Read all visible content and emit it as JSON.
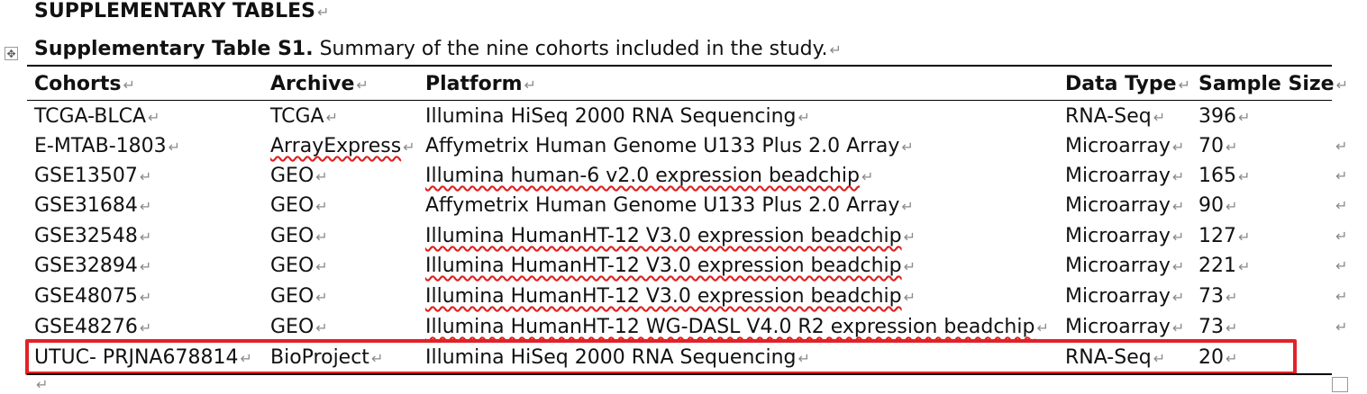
{
  "heading": "SUPPLEMENTARY TABLES",
  "caption": {
    "label": "Supplementary Table S1.",
    "text": " Summary of the nine cohorts included in the study."
  },
  "marks": {
    "return": "↵",
    "handle": "✥",
    "arrow": "⇠"
  },
  "columns": [
    "Cohorts",
    "Archive",
    "Platform",
    "Data Type",
    "Sample Size"
  ],
  "rows": [
    {
      "cohort": "TCGA-BLCA",
      "archive": "TCGA",
      "platform": "Illumina HiSeq 2000 RNA Sequencing",
      "type": "RNA-Seq",
      "size": "396"
    },
    {
      "cohort": "E-MTAB-1803",
      "archive": "ArrayExpress",
      "platform": "Affymetrix Human Genome U133 Plus 2.0 Array",
      "type": "Microarray",
      "size": "70"
    },
    {
      "cohort": "GSE13507",
      "archive": "GEO",
      "platform": "Illumina human-6 v2.0 expression beadchip",
      "type": "Microarray",
      "size": "165"
    },
    {
      "cohort": "GSE31684",
      "archive": "GEO",
      "platform": "Affymetrix Human Genome U133 Plus 2.0 Array",
      "type": "Microarray",
      "size": "90"
    },
    {
      "cohort": "GSE32548",
      "archive": "GEO",
      "platform": "Illumina HumanHT-12 V3.0 expression beadchip",
      "type": "Microarray",
      "size": "127"
    },
    {
      "cohort": "GSE32894",
      "archive": "GEO",
      "platform": "Illumina HumanHT-12 V3.0 expression beadchip",
      "type": "Microarray",
      "size": "221"
    },
    {
      "cohort": "GSE48075",
      "archive": "GEO",
      "platform": "Illumina HumanHT-12 V3.0 expression beadchip",
      "type": "Microarray",
      "size": "73"
    },
    {
      "cohort": "GSE48276",
      "archive": "GEO",
      "platform": "Illumina HumanHT-12 WG-DASL V4.0 R2 expression beadchip",
      "type": "Microarray",
      "size": "73"
    },
    {
      "cohort": "UTUC- PRJNA678814",
      "archive": "BioProject",
      "platform": "Illumina HiSeq 2000 RNA Sequencing",
      "type": "RNA-Seq",
      "size": "20"
    }
  ],
  "colors": {
    "highlight": "#e02228",
    "spellcheck": "#e02020",
    "text": "#111111"
  }
}
